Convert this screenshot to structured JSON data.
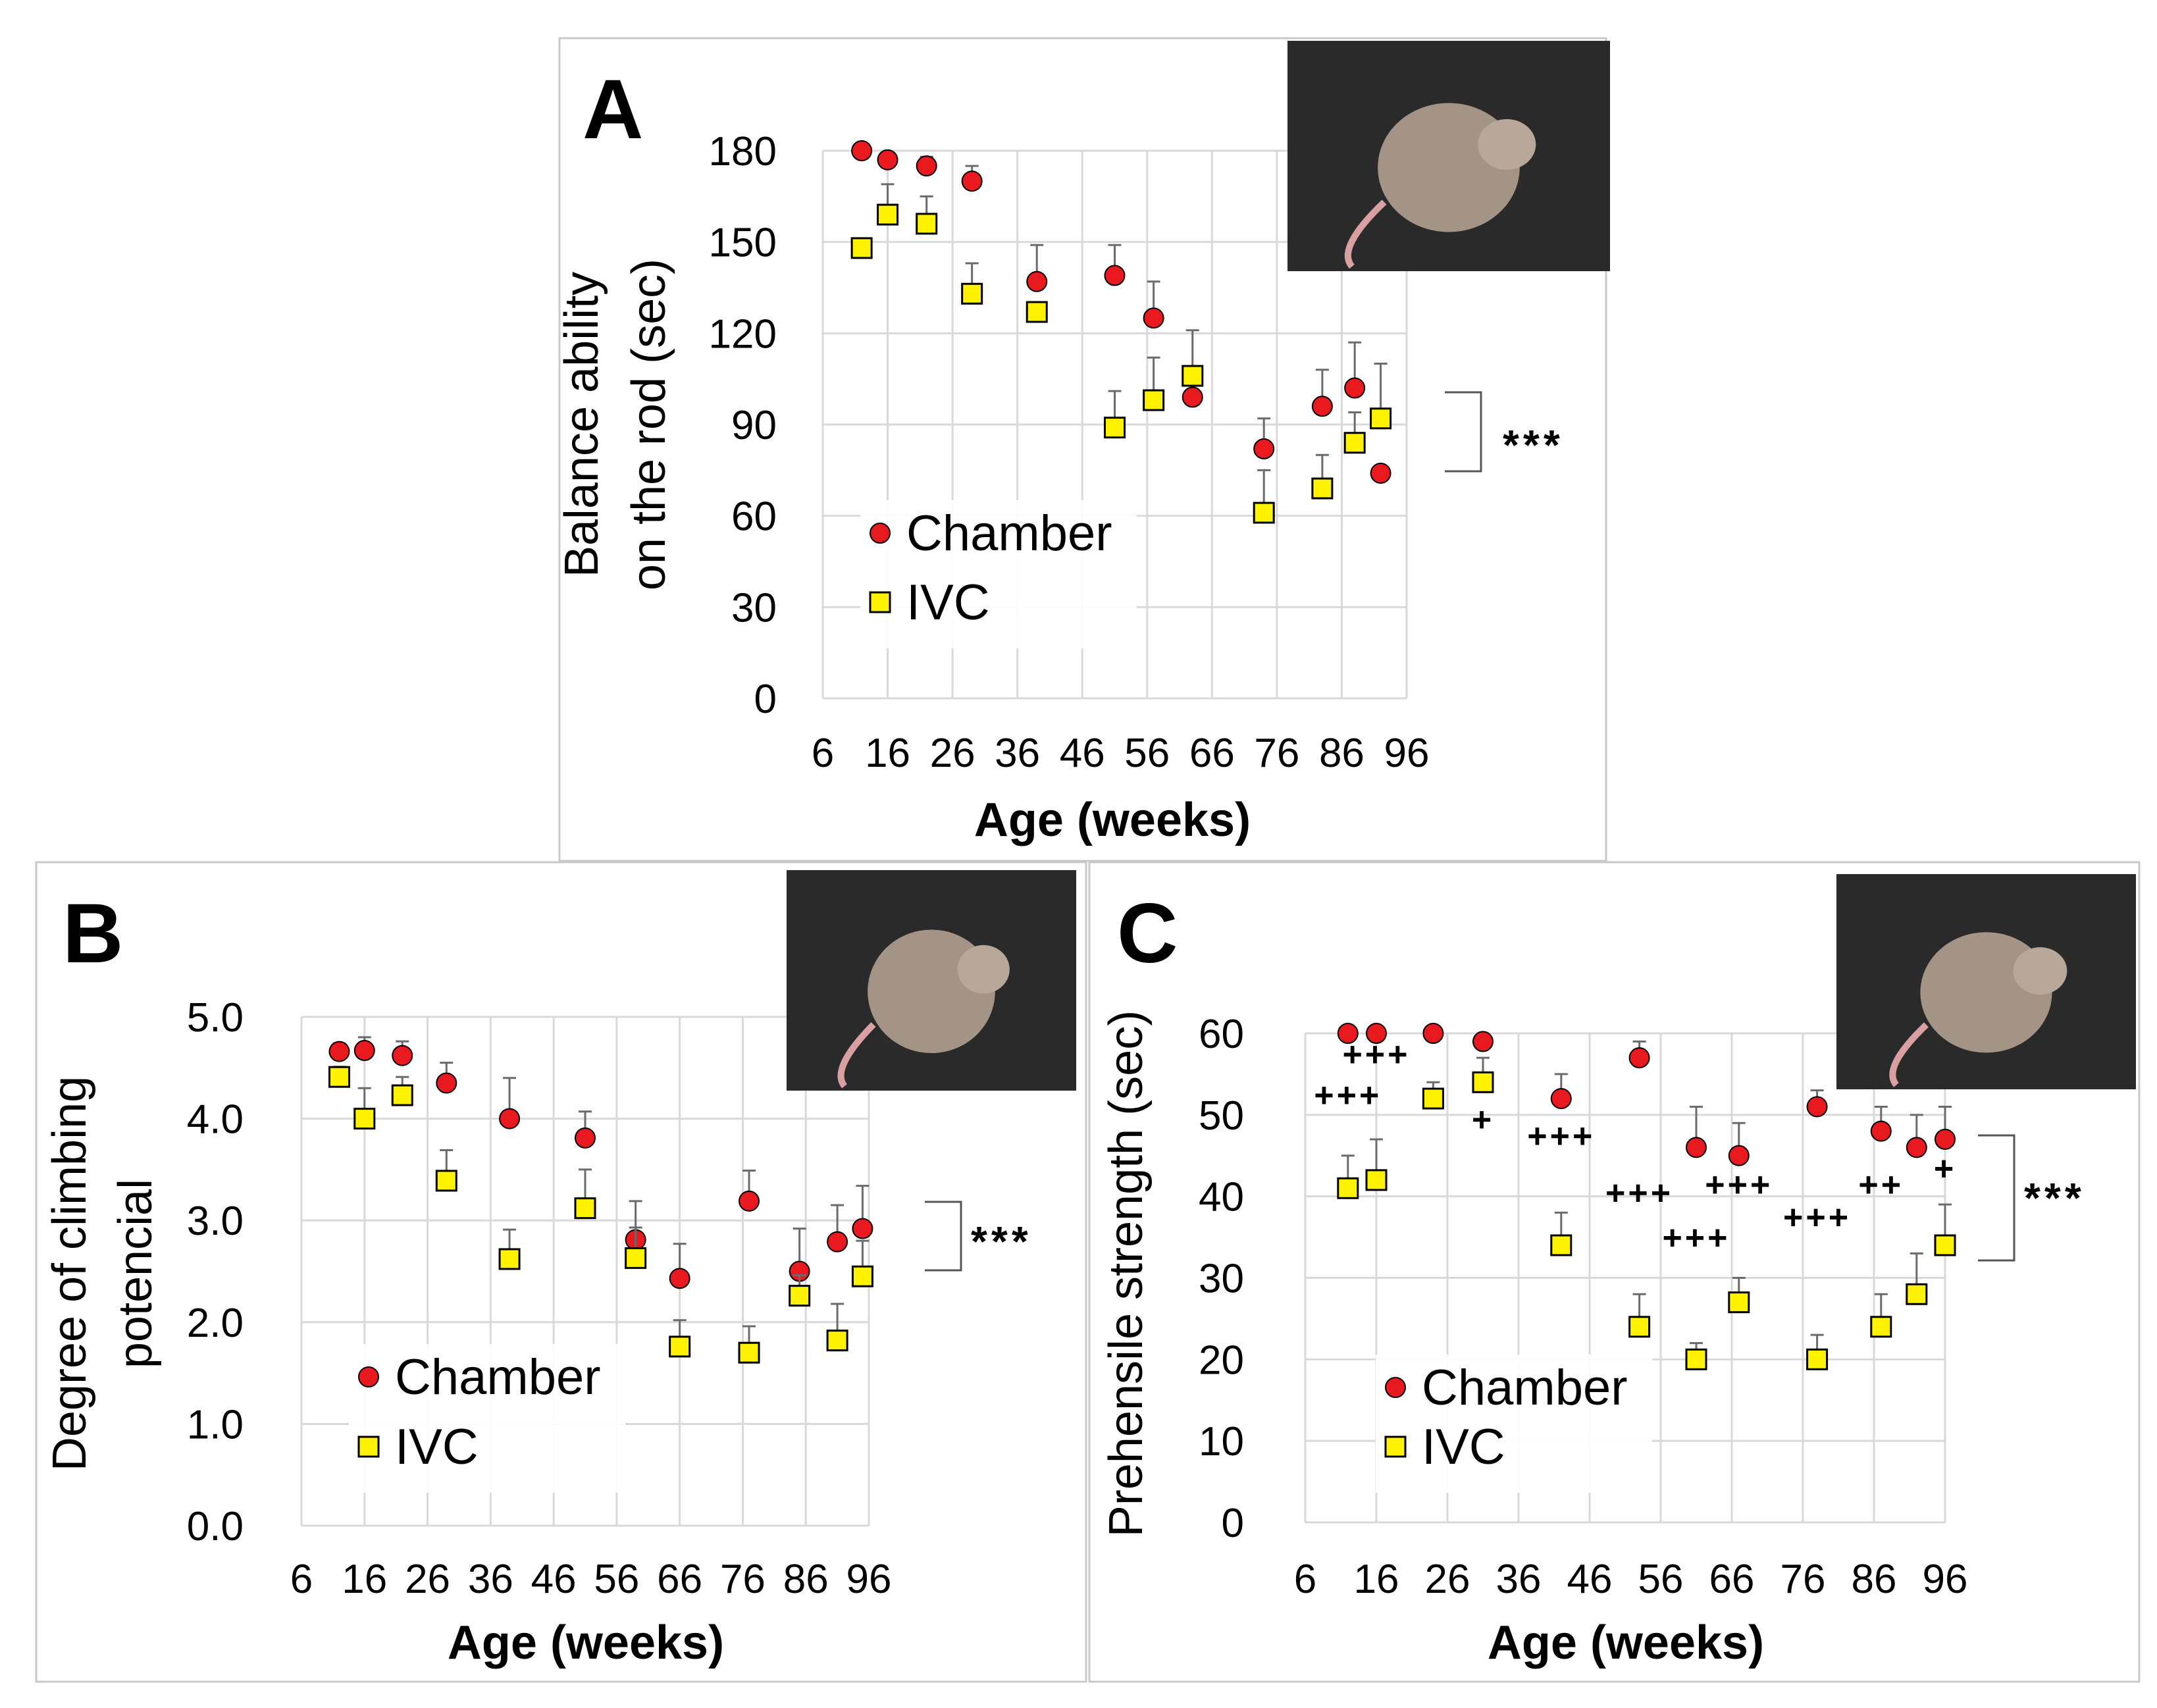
{
  "colors": {
    "chamber": "#e8191f",
    "ivc": "#fff200",
    "grid": "#d9d9d9",
    "frame": "#c8c8c8",
    "errorbar": "#6b6b6b"
  },
  "legend": {
    "chamber": "Chamber",
    "ivc": "IVC"
  },
  "chart_data": [
    {
      "panel": "A",
      "type": "scatter",
      "title": "",
      "xlabel": "Age (weeks)",
      "ylabel": "Balance ability on the rod (sec)",
      "ylabel_lines": [
        "Balance ability",
        "on the rod (sec)"
      ],
      "xlim": [
        6,
        96
      ],
      "ylim": [
        0,
        180
      ],
      "xticks": [
        6,
        16,
        26,
        36,
        46,
        56,
        66,
        76,
        86,
        96
      ],
      "yticks": [
        0,
        30,
        60,
        90,
        120,
        150,
        180
      ],
      "ytick_labels": [
        "0",
        "30",
        "60",
        "90",
        "120",
        "150",
        "180"
      ],
      "grid": true,
      "legend_position": "bottom-left",
      "significance": "***",
      "photo_icon": "mouse-on-rod-photo",
      "series": [
        {
          "name": "Chamber",
          "x": [
            12,
            16,
            22,
            29,
            39,
            51,
            57,
            63,
            74,
            83,
            88,
            92
          ],
          "y": [
            180,
            177,
            175,
            170,
            137,
            139,
            125,
            99,
            82,
            96,
            102,
            74
          ],
          "err": [
            0,
            0,
            3,
            5,
            12,
            10,
            12,
            0,
            10,
            12,
            15,
            0
          ]
        },
        {
          "name": "IVC",
          "x": [
            12,
            16,
            22,
            29,
            39,
            51,
            57,
            63,
            74,
            83,
            88,
            92
          ],
          "y": [
            148,
            159,
            156,
            133,
            127,
            89,
            98,
            106,
            61,
            69,
            84,
            92
          ],
          "err": [
            0,
            10,
            9,
            10,
            0,
            12,
            14,
            15,
            14,
            11,
            10,
            18
          ]
        }
      ]
    },
    {
      "panel": "B",
      "type": "scatter",
      "title": "",
      "xlabel": "Age (weeks)",
      "ylabel": "Degree of climbing potencial",
      "ylabel_lines": [
        "Degree of climbing",
        "potencial"
      ],
      "xlim": [
        6,
        96
      ],
      "ylim": [
        0,
        5
      ],
      "xticks": [
        6,
        16,
        26,
        36,
        46,
        56,
        66,
        76,
        86,
        96
      ],
      "yticks": [
        0,
        1,
        2,
        3,
        4,
        5
      ],
      "ytick_labels": [
        "0.0",
        "1.0",
        "2.0",
        "3.0",
        "4.0",
        "5.0"
      ],
      "grid": true,
      "legend_position": "bottom-left",
      "significance": "***",
      "photo_icon": "mouse-climbing-photo",
      "series": [
        {
          "name": "Chamber",
          "x": [
            12,
            16,
            22,
            29,
            39,
            51,
            59,
            66,
            77,
            85,
            91,
            95
          ],
          "y": [
            4.66,
            4.67,
            4.62,
            4.35,
            4.0,
            3.81,
            2.81,
            2.43,
            3.19,
            2.5,
            2.79,
            2.92
          ],
          "err": [
            0.08,
            0.13,
            0.14,
            0.2,
            0.4,
            0.26,
            0.38,
            0.34,
            0.3,
            0.42,
            0.36,
            0.42
          ]
        },
        {
          "name": "IVC",
          "x": [
            12,
            16,
            22,
            29,
            39,
            51,
            59,
            66,
            77,
            85,
            91,
            95
          ],
          "y": [
            4.41,
            4.0,
            4.23,
            3.39,
            2.62,
            3.12,
            2.63,
            1.76,
            1.7,
            2.26,
            1.82,
            2.45
          ],
          "err": [
            0.1,
            0.3,
            0.18,
            0.3,
            0.29,
            0.38,
            0.3,
            0.26,
            0.26,
            0.2,
            0.36,
            0.35
          ]
        }
      ]
    },
    {
      "panel": "C",
      "type": "scatter",
      "title": "",
      "xlabel": "Age (weeks)",
      "ylabel": "Prehensile strength (sec)",
      "ylabel_lines": [
        "Prehensile strength (sec)"
      ],
      "xlim": [
        6,
        96
      ],
      "ylim": [
        0,
        60
      ],
      "xticks": [
        6,
        16,
        26,
        36,
        46,
        56,
        66,
        76,
        86,
        96
      ],
      "yticks": [
        0,
        10,
        20,
        30,
        40,
        50,
        60
      ],
      "ytick_labels": [
        "0",
        "10",
        "20",
        "30",
        "40",
        "50",
        "60"
      ],
      "grid": true,
      "legend_position": "bottom-left",
      "significance": "***",
      "photo_icon": "mouse-hanging-photo",
      "series": [
        {
          "name": "Chamber",
          "x": [
            12,
            16,
            24,
            31,
            42,
            53,
            61,
            67,
            78,
            87,
            92,
            96
          ],
          "y": [
            60,
            60,
            60,
            59,
            52,
            57,
            46,
            45,
            51,
            48,
            46,
            47
          ],
          "err": [
            0,
            0,
            0,
            0,
            3,
            2,
            5,
            4,
            2,
            3,
            4,
            4
          ]
        },
        {
          "name": "IVC",
          "x": [
            12,
            16,
            24,
            31,
            42,
            53,
            61,
            67,
            78,
            87,
            92,
            96
          ],
          "y": [
            41,
            42,
            52,
            54,
            34,
            24,
            20,
            27,
            20,
            24,
            28,
            34
          ],
          "err": [
            4,
            5,
            2,
            3,
            4,
            4,
            2,
            3,
            3,
            4,
            5,
            5
          ]
        }
      ],
      "annotations": [
        {
          "text": "+++",
          "x": 12,
          "y": 51
        },
        {
          "text": "+++",
          "x": 16,
          "y": 56
        },
        {
          "text": "+",
          "x": 31,
          "y": 48
        },
        {
          "text": "+++",
          "x": 42,
          "y": 46
        },
        {
          "text": "+++",
          "x": 53,
          "y": 39
        },
        {
          "text": "+++",
          "x": 61,
          "y": 33.5
        },
        {
          "text": "+++",
          "x": 67,
          "y": 40
        },
        {
          "text": "+++",
          "x": 78,
          "y": 36
        },
        {
          "text": "++",
          "x": 87,
          "y": 40
        },
        {
          "text": "+",
          "x": 96,
          "y": 42
        }
      ]
    }
  ]
}
